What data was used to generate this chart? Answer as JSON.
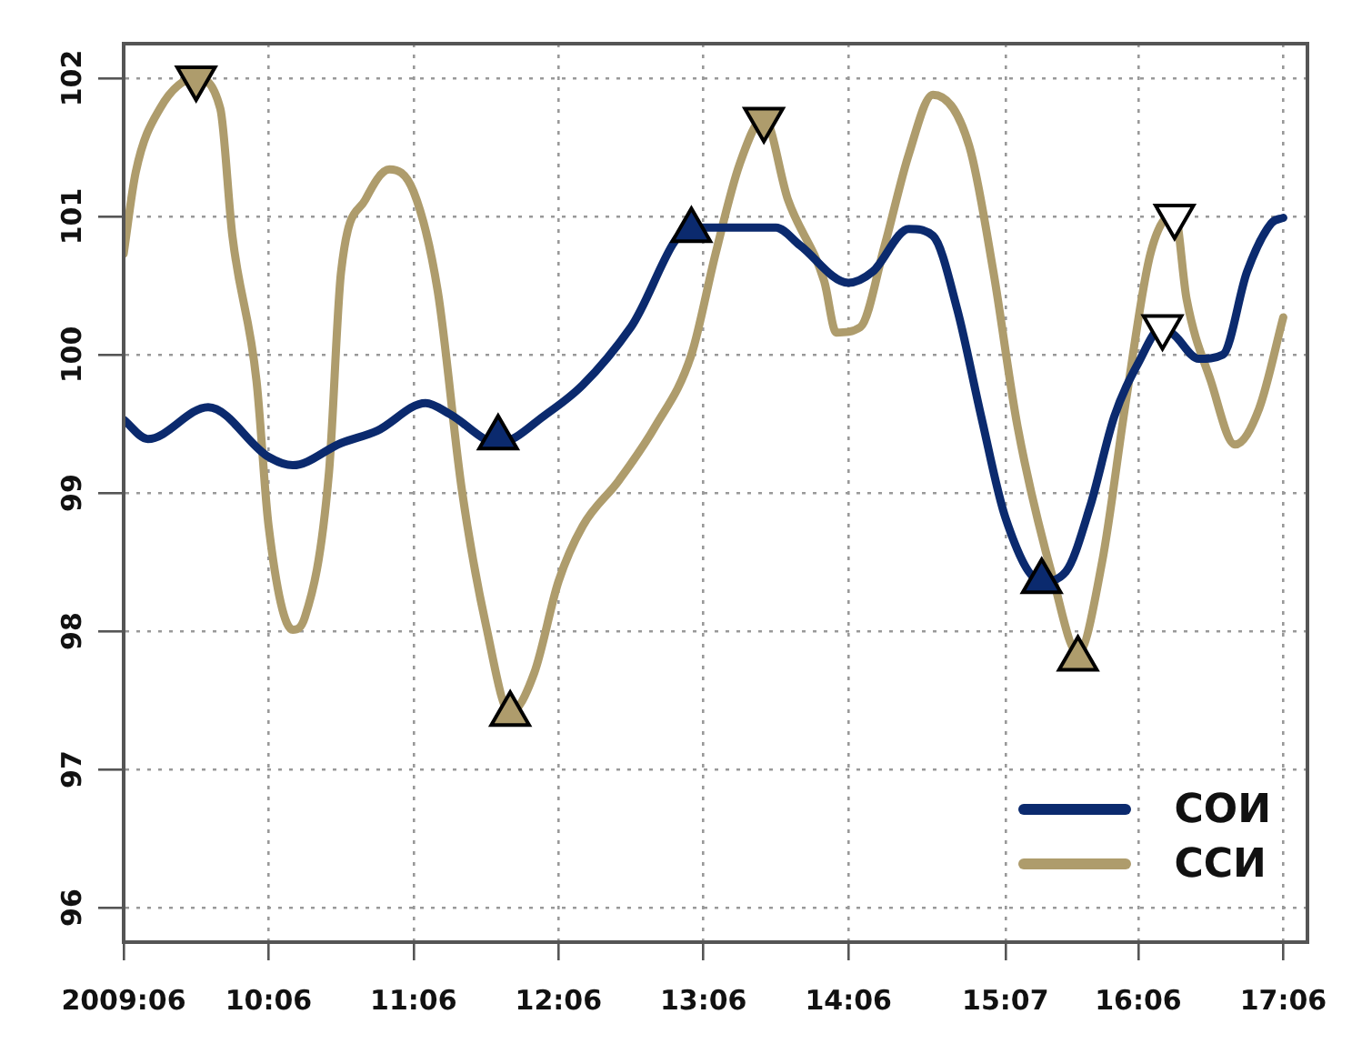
{
  "chart_data": {
    "type": "line",
    "xlim": [
      "2009-06",
      "2017-08"
    ],
    "ylim": [
      95.75,
      102.25
    ],
    "xticks": [
      {
        "value": "2009-06",
        "label": "2009:06"
      },
      {
        "value": "2010-06",
        "label": "10:06"
      },
      {
        "value": "2011-06",
        "label": "11:06"
      },
      {
        "value": "2012-06",
        "label": "12:06"
      },
      {
        "value": "2013-06",
        "label": "13:06"
      },
      {
        "value": "2014-06",
        "label": "14:06"
      },
      {
        "value": "2015-07",
        "label": "15:07"
      },
      {
        "value": "2016-06",
        "label": "16:06"
      },
      {
        "value": "2017-06",
        "label": "17:06"
      }
    ],
    "yticks": [
      96,
      97,
      98,
      99,
      100,
      101,
      102
    ],
    "grid": true,
    "legend": "bottom right",
    "line_style": "solid",
    "series": [
      {
        "name": "СОИ",
        "color": "#0b2a6e",
        "x": [
          "2009-06",
          "2009-08",
          "2010-01",
          "2010-06",
          "2010-08",
          "2010-12",
          "2011-03",
          "2011-07",
          "2011-09",
          "2012-01",
          "2012-05",
          "2012-08",
          "2012-12",
          "2013-05",
          "2013-09",
          "2013-12",
          "2014-02",
          "2014-06",
          "2014-08",
          "2014-11",
          "2015-01",
          "2015-03",
          "2015-05",
          "2015-07",
          "2015-10",
          "2015-12",
          "2016-02",
          "2016-04",
          "2016-06",
          "2016-08",
          "2016-09",
          "2016-11",
          "2017-01",
          "2017-03",
          "2017-05",
          "2017-06"
        ],
        "values": [
          99.53,
          99.39,
          99.62,
          99.26,
          99.2,
          99.36,
          99.45,
          99.65,
          99.57,
          99.36,
          99.57,
          99.78,
          100.2,
          100.92,
          100.92,
          100.92,
          100.79,
          100.52,
          100.6,
          100.91,
          100.86,
          100.33,
          99.55,
          98.82,
          98.36,
          98.43,
          98.9,
          99.55,
          99.94,
          100.2,
          100.14,
          99.97,
          100.0,
          100.6,
          100.95,
          100.99
        ]
      },
      {
        "name": "ССИ",
        "color": "#ae9c6c",
        "x": [
          "2009-06",
          "2009-07",
          "2009-09",
          "2009-12",
          "2010-02",
          "2010-03",
          "2010-05",
          "2010-06",
          "2010-08",
          "2010-09",
          "2010-11",
          "2010-12",
          "2011-02",
          "2011-04",
          "2011-06",
          "2011-08",
          "2011-10",
          "2011-12",
          "2012-02",
          "2012-04",
          "2012-06",
          "2012-08",
          "2012-11",
          "2013-02",
          "2013-05",
          "2013-07",
          "2013-09",
          "2013-11",
          "2014-01",
          "2014-04",
          "2014-05",
          "2014-07",
          "2014-09",
          "2014-11",
          "2015-01",
          "2015-04",
          "2015-06",
          "2015-08",
          "2015-11",
          "2016-01",
          "2016-03",
          "2016-05",
          "2016-07",
          "2016-09",
          "2016-10",
          "2016-12",
          "2017-02",
          "2017-04",
          "2017-06"
        ],
        "values": [
          100.73,
          101.32,
          101.78,
          102.0,
          101.78,
          100.86,
          99.81,
          98.76,
          98.01,
          98.1,
          99.15,
          100.6,
          101.12,
          101.34,
          101.18,
          100.46,
          99.02,
          98.04,
          97.41,
          97.7,
          98.36,
          98.76,
          99.09,
          99.48,
          100.0,
          100.73,
          101.38,
          101.71,
          101.12,
          100.53,
          100.16,
          100.2,
          100.79,
          101.45,
          101.88,
          101.51,
          100.6,
          99.48,
          98.36,
          97.84,
          98.5,
          99.68,
          100.73,
          101.02,
          100.4,
          99.81,
          99.35,
          99.61,
          100.27
        ]
      },
      {
        "type": "scatter",
        "marker": "triangle",
        "color": "#0b2a6e",
        "x": [
          "2012-01",
          "2013-05",
          "2015-10"
        ],
        "values": [
          99.4,
          100.9,
          98.36
        ]
      },
      {
        "type": "scatter",
        "marker": "triangle",
        "color": "#ae9c6c",
        "x": [
          "2009-12",
          "2012-02",
          "2013-11",
          "2016-01"
        ],
        "values": [
          102.0,
          97.4,
          101.7,
          97.8
        ]
      },
      {
        "type": "scatter",
        "marker": "triangle",
        "color": "#ffffff",
        "x": [
          "2016-08",
          "2016-09"
        ],
        "values": [
          100.2,
          101.0
        ]
      }
    ]
  }
}
